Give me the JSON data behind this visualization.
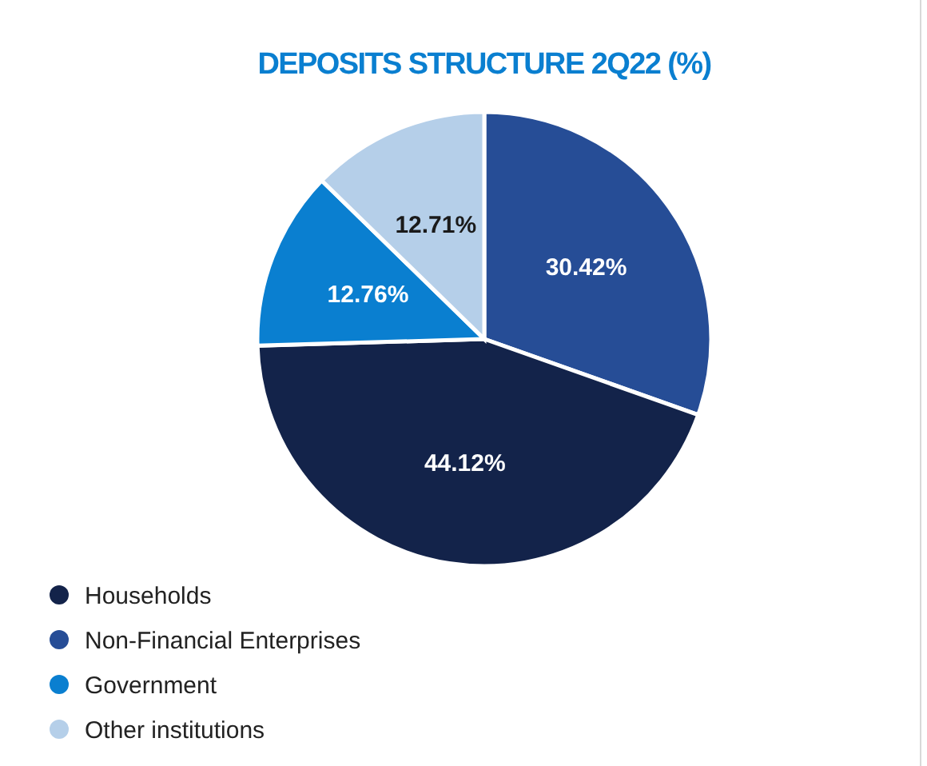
{
  "chart_data": {
    "type": "pie",
    "title": "DEPOSITS STRUCTURE 2Q22 (%)",
    "categories": [
      "Households",
      "Non-Financial Enterprises",
      "Government",
      "Other institutions"
    ],
    "values": [
      44.12,
      30.42,
      12.76,
      12.71
    ],
    "colors": [
      "#13234a",
      "#264d96",
      "#0a7fd0",
      "#b5cfe9"
    ],
    "value_labels": [
      "44.12%",
      "30.42%",
      "12.76%",
      "12.71%"
    ],
    "legend": "bottom left"
  }
}
